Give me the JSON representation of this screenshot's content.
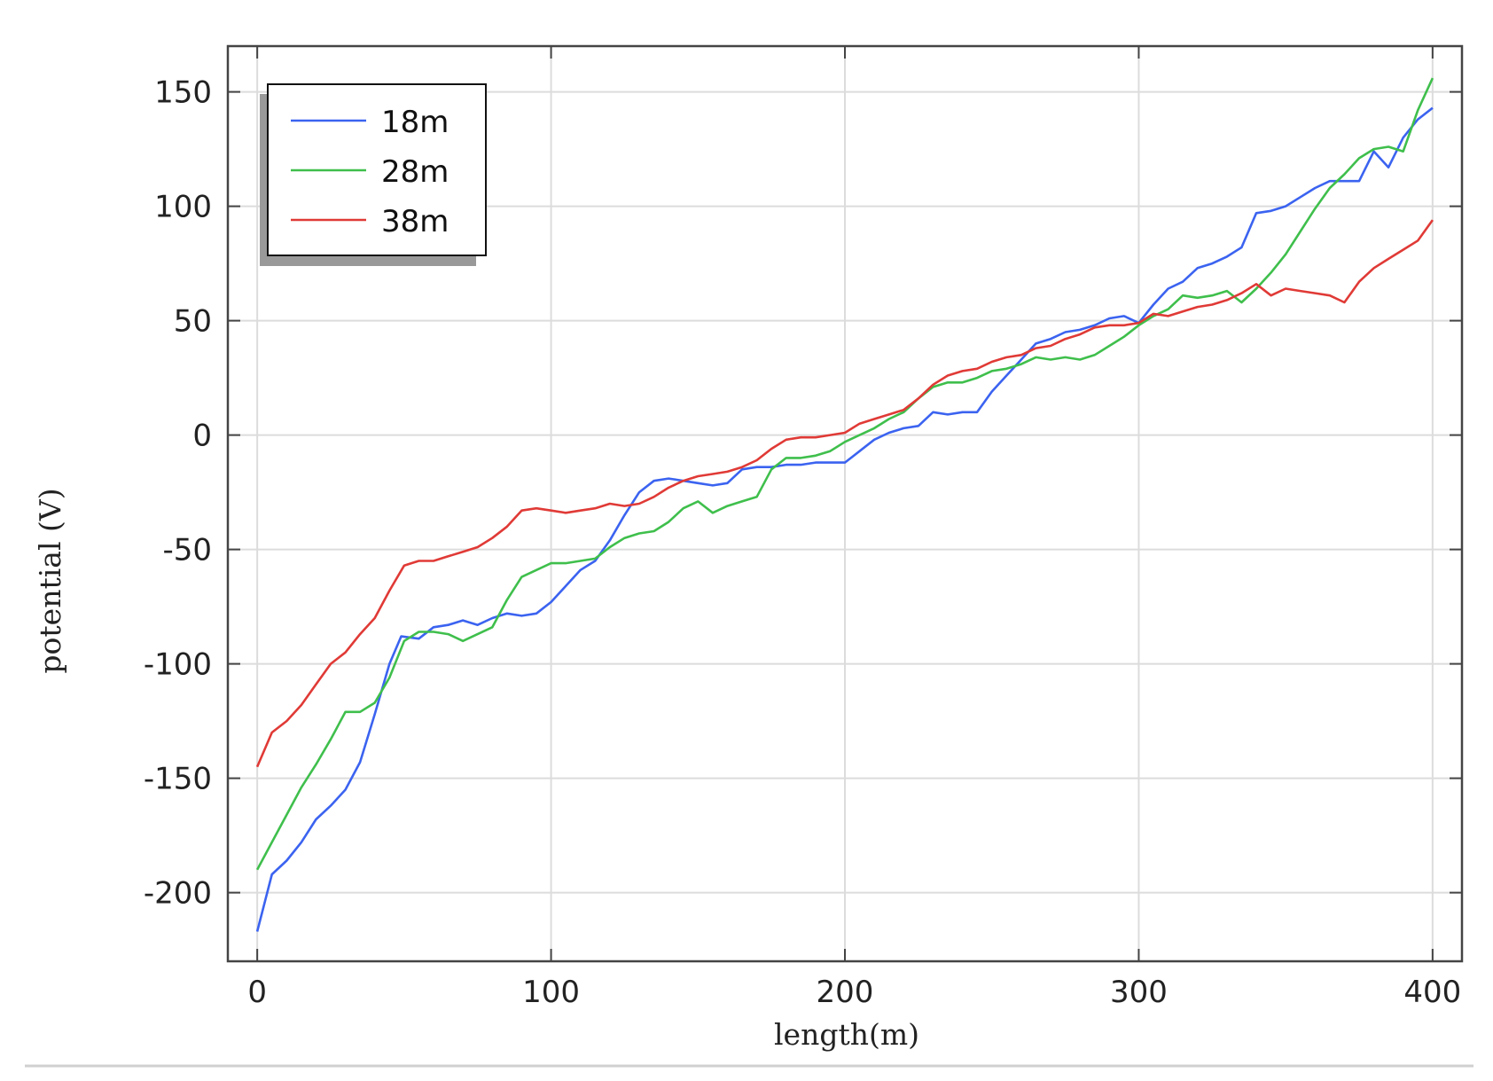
{
  "chart_data": {
    "type": "line",
    "xlabel": "length(m)",
    "ylabel": "potential (V)",
    "xlim": [
      -10,
      410
    ],
    "ylim": [
      -230,
      170
    ],
    "xticks": [
      0,
      100,
      200,
      300,
      400
    ],
    "xtick_labels": [
      "0",
      "100",
      "200",
      "300",
      "400"
    ],
    "yticks": [
      -200,
      -150,
      -100,
      -50,
      0,
      50,
      100,
      150
    ],
    "ytick_labels": [
      "-200",
      "-150",
      "-100",
      "-50",
      "0",
      "50",
      "100",
      "150"
    ],
    "grid": true,
    "legend_position": "top-left",
    "series": [
      {
        "name": "18m",
        "color": "#3b63f0",
        "x": [
          0,
          5,
          10,
          15,
          20,
          25,
          30,
          35,
          40,
          45,
          49,
          55,
          60,
          65,
          70,
          75,
          80,
          85,
          90,
          95,
          100,
          105,
          110,
          115,
          120,
          125,
          130,
          135,
          140,
          145,
          150,
          155,
          160,
          165,
          170,
          175,
          180,
          185,
          190,
          195,
          200,
          205,
          210,
          215,
          220,
          225,
          230,
          235,
          240,
          245,
          250,
          255,
          260,
          265,
          270,
          275,
          280,
          285,
          290,
          295,
          300,
          305,
          310,
          315,
          320,
          325,
          330,
          335,
          340,
          345,
          350,
          355,
          360,
          365,
          370,
          375,
          380,
          385,
          390,
          395,
          400
        ],
        "y": [
          -217,
          -192,
          -186,
          -178,
          -168,
          -162,
          -155,
          -143,
          -122,
          -100,
          -88,
          -89,
          -84,
          -83,
          -81,
          -83,
          -80,
          -78,
          -79,
          -78,
          -73,
          -66,
          -59,
          -55,
          -46,
          -35,
          -25,
          -20,
          -19,
          -20,
          -21,
          -22,
          -21,
          -15,
          -14,
          -14,
          -13,
          -13,
          -12,
          -12,
          -12,
          -7,
          -2,
          1,
          3,
          4,
          10,
          9,
          10,
          10,
          19,
          26,
          33,
          40,
          42,
          45,
          46,
          48,
          51,
          52,
          49,
          57,
          64,
          67,
          73,
          75,
          78,
          82,
          97,
          98,
          100,
          104,
          108,
          111,
          111,
          111,
          124,
          117,
          130,
          138,
          143
        ]
      },
      {
        "name": "28m",
        "color": "#3fbf4c",
        "x": [
          0,
          5,
          10,
          15,
          20,
          25,
          30,
          35,
          40,
          45,
          50,
          55,
          60,
          65,
          70,
          75,
          80,
          85,
          90,
          95,
          100,
          105,
          110,
          115,
          120,
          125,
          130,
          135,
          140,
          145,
          150,
          155,
          160,
          165,
          170,
          175,
          180,
          185,
          190,
          195,
          200,
          205,
          210,
          215,
          220,
          225,
          230,
          235,
          240,
          245,
          250,
          255,
          260,
          265,
          270,
          275,
          280,
          285,
          290,
          295,
          300,
          305,
          310,
          315,
          320,
          325,
          330,
          335,
          340,
          345,
          350,
          355,
          360,
          365,
          370,
          375,
          380,
          385,
          390,
          395,
          400
        ],
        "y": [
          -190,
          -178,
          -166,
          -154,
          -144,
          -133,
          -121,
          -121,
          -117,
          -106,
          -90,
          -86,
          -86,
          -87,
          -90,
          -87,
          -84,
          -72,
          -62,
          -59,
          -56,
          -56,
          -55,
          -54,
          -49,
          -45,
          -43,
          -42,
          -38,
          -32,
          -29,
          -34,
          -31,
          -29,
          -27,
          -15,
          -10,
          -10,
          -9,
          -7,
          -3,
          0,
          3,
          7,
          10,
          16,
          21,
          23,
          23,
          25,
          28,
          29,
          31,
          34,
          33,
          34,
          33,
          35,
          39,
          43,
          48,
          52,
          55,
          61,
          60,
          61,
          63,
          58,
          64,
          71,
          79,
          89,
          99,
          108,
          114,
          121,
          125,
          126,
          124,
          142,
          156
        ]
      },
      {
        "name": "38m",
        "color": "#e03a36",
        "x": [
          0,
          5,
          10,
          15,
          20,
          25,
          30,
          35,
          40,
          45,
          50,
          55,
          60,
          65,
          70,
          75,
          80,
          85,
          90,
          95,
          100,
          105,
          110,
          115,
          120,
          125,
          130,
          135,
          140,
          145,
          150,
          155,
          160,
          165,
          170,
          175,
          180,
          185,
          190,
          195,
          200,
          205,
          210,
          215,
          220,
          225,
          230,
          235,
          240,
          245,
          250,
          255,
          260,
          265,
          270,
          275,
          280,
          285,
          290,
          295,
          300,
          305,
          310,
          315,
          320,
          325,
          330,
          335,
          340,
          345,
          350,
          355,
          360,
          365,
          370,
          375,
          380,
          385,
          390,
          395,
          400
        ],
        "y": [
          -145,
          -130,
          -125,
          -118,
          -109,
          -100,
          -95,
          -87,
          -80,
          -68,
          -57,
          -55,
          -55,
          -53,
          -51,
          -49,
          -45,
          -40,
          -33,
          -32,
          -33,
          -34,
          -33,
          -32,
          -30,
          -31,
          -30,
          -27,
          -23,
          -20,
          -18,
          -17,
          -16,
          -14,
          -11,
          -6,
          -2,
          -1,
          -1,
          0,
          1,
          5,
          7,
          9,
          11,
          16,
          22,
          26,
          28,
          29,
          32,
          34,
          35,
          38,
          39,
          42,
          44,
          47,
          48,
          48,
          49,
          53,
          52,
          54,
          56,
          57,
          59,
          62,
          66,
          61,
          64,
          63,
          62,
          61,
          58,
          67,
          73,
          77,
          81,
          85,
          94
        ]
      }
    ]
  }
}
